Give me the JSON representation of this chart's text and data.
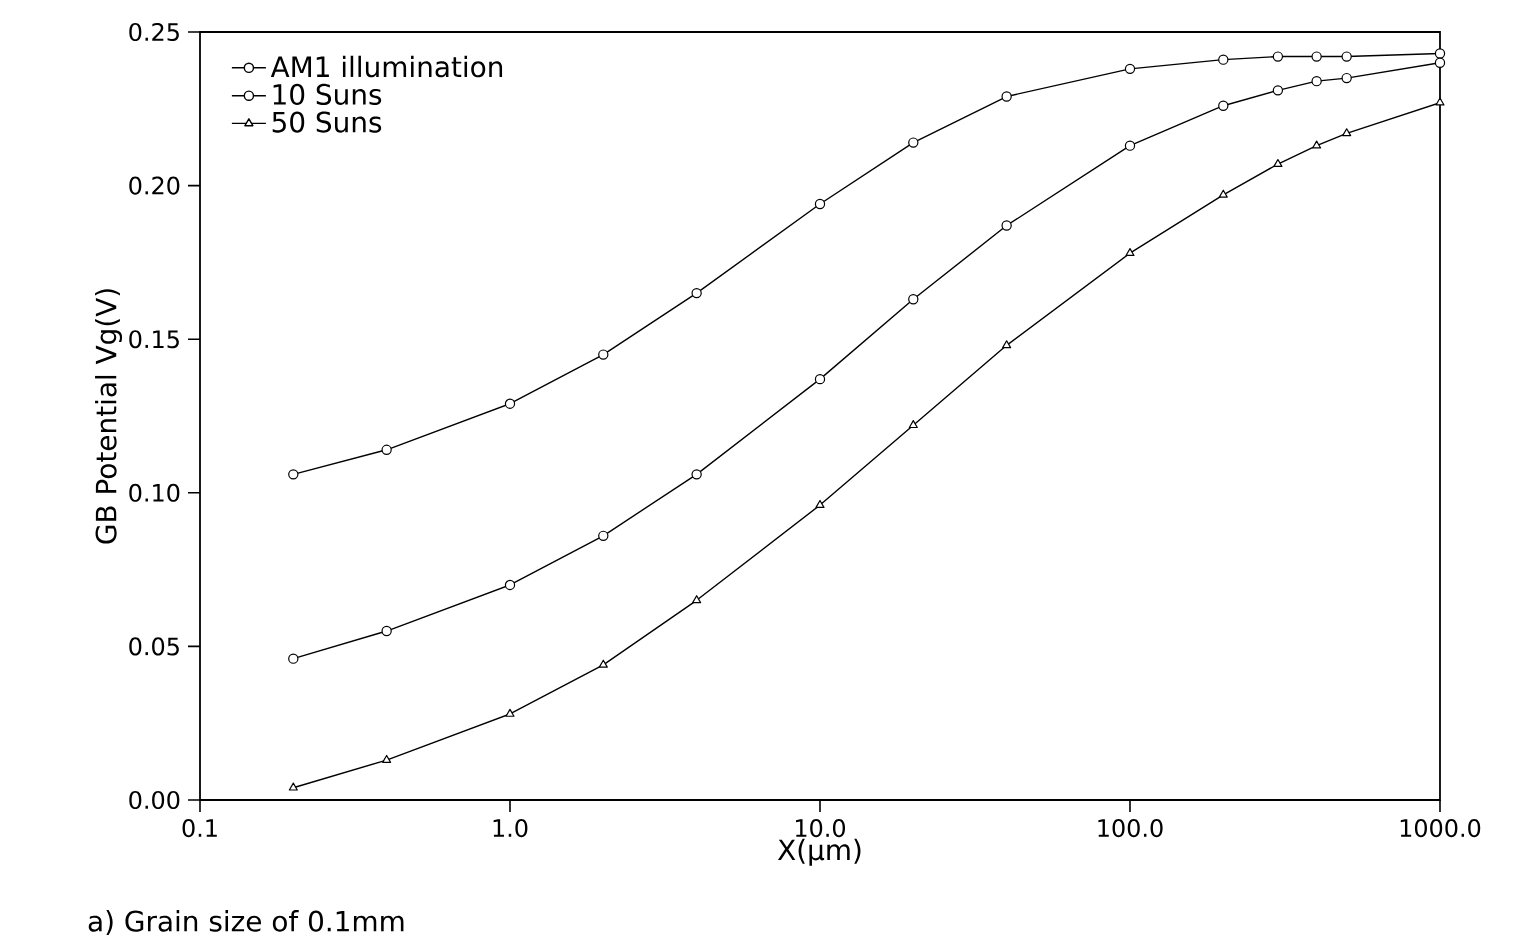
{
  "chart_data": {
    "type": "line",
    "xlabel": "X(μm)",
    "ylabel": "GB Potential Vg(V)",
    "annotations": [
      "a)  Grain size of 0.1mm"
    ],
    "x": [
      0.2,
      0.4,
      1,
      2,
      4,
      10,
      20,
      40,
      100,
      200,
      300,
      400,
      500,
      1000
    ],
    "series": [
      {
        "name": "AM1 illumination",
        "color": "#000000",
        "marker": "circle",
        "values": [
          0.106,
          0.114,
          0.129,
          0.145,
          0.165,
          0.194,
          0.214,
          0.229,
          0.238,
          0.241,
          0.242,
          0.242,
          0.242,
          0.243
        ]
      },
      {
        "name": "10 Suns",
        "color": "#000000",
        "marker": "circle",
        "values": [
          0.046,
          0.055,
          0.07,
          0.086,
          0.106,
          0.137,
          0.163,
          0.187,
          0.213,
          0.226,
          0.231,
          0.234,
          0.235,
          0.24
        ]
      },
      {
        "name": "50 Suns",
        "color": "#000000",
        "marker": "triangle",
        "values": [
          0.004,
          0.013,
          0.028,
          0.044,
          0.065,
          0.096,
          0.122,
          0.148,
          0.178,
          0.197,
          0.207,
          0.213,
          0.217,
          0.227
        ]
      }
    ],
    "log": "x",
    "xlim": [
      0.1,
      1000
    ],
    "ylim": [
      0,
      0.25
    ],
    "xticks": [
      {
        "value": 0.1,
        "label": "0.1"
      },
      {
        "value": 1,
        "label": "1.0"
      },
      {
        "value": 10,
        "label": "10.0"
      },
      {
        "value": 100,
        "label": "100.0"
      },
      {
        "value": 1000,
        "label": "1000.0"
      }
    ],
    "yticks": [
      {
        "value": 0,
        "label": "0.00"
      },
      {
        "value": 0.05,
        "label": "0.05"
      },
      {
        "value": 0.1,
        "label": "0.10"
      },
      {
        "value": 0.15,
        "label": "0.15"
      },
      {
        "value": 0.2,
        "label": "0.20"
      },
      {
        "value": 0.25,
        "label": "0.25"
      }
    ],
    "grid": false,
    "legend": "top left",
    "line_style": "solid"
  }
}
